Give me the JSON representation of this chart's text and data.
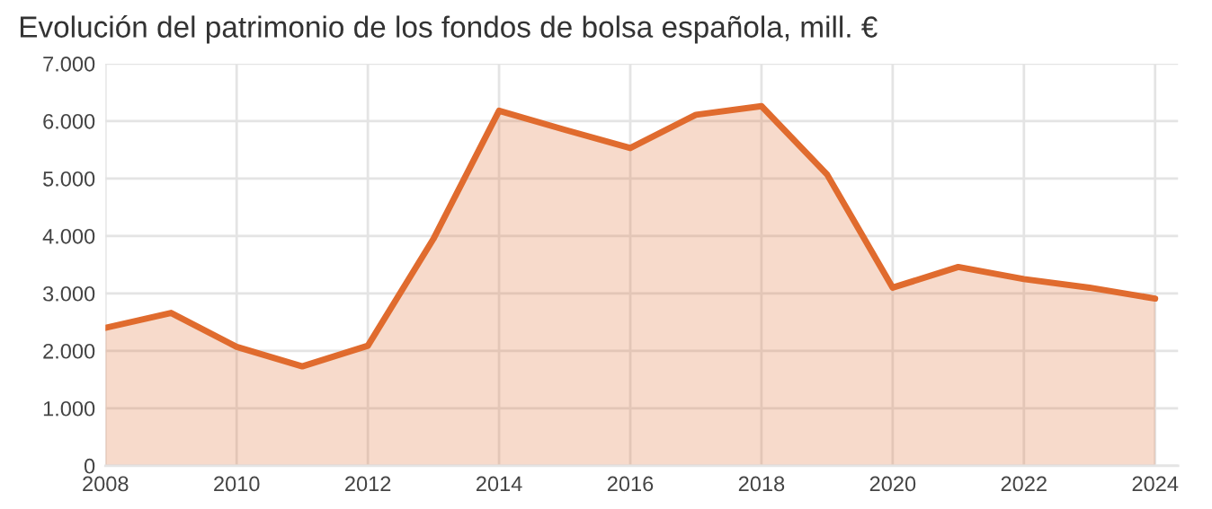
{
  "chart_data": {
    "type": "area",
    "title": "Evolución del patrimonio de los fondos de bolsa española, mill. €",
    "x": [
      2008,
      2009,
      2010,
      2011,
      2012,
      2013,
      2014,
      2015,
      2016,
      2017,
      2018,
      2019,
      2020,
      2021,
      2022,
      2023,
      2024
    ],
    "series": [
      {
        "color": "#e06b2e",
        "values": [
          2400,
          2660,
          2070,
          1730,
          2090,
          3950,
          6180,
          5850,
          5530,
          6110,
          6260,
          5070,
          3100,
          3460,
          3250,
          3100,
          2910
        ]
      }
    ],
    "xlim": [
      2008,
      2024.35
    ],
    "xticks": [
      2008,
      2010,
      2012,
      2014,
      2016,
      2018,
      2020,
      2022,
      2024
    ],
    "ylim": [
      0,
      7000
    ],
    "yticks": [
      {
        "value": 0,
        "label": "0"
      },
      {
        "value": 1000,
        "label": "1.000"
      },
      {
        "value": 2000,
        "label": "2.000"
      },
      {
        "value": 3000,
        "label": "3.000"
      },
      {
        "value": 4000,
        "label": "4.000"
      },
      {
        "value": 5000,
        "label": "5.000"
      },
      {
        "value": 6000,
        "label": "6.000"
      },
      {
        "value": 7000,
        "label": "7.000"
      }
    ],
    "grid": true,
    "marker": "none",
    "line_style": "solid"
  }
}
